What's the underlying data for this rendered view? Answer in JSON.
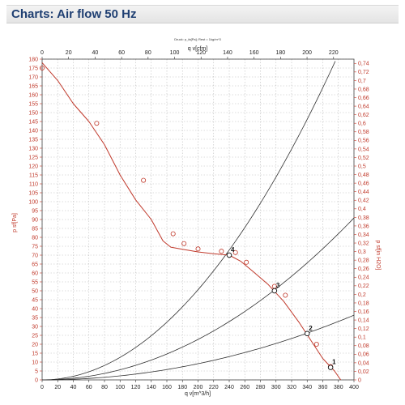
{
  "header": {
    "title": "Charts: Air flow 50 Hz"
  },
  "chart_data": {
    "type": "line",
    "subtitle": "Druck: p_fa[Pa]; Rest = 1kg/m^3",
    "colors": {
      "curve": "#c0392b",
      "right_axis": "#c0392b",
      "left_axis": "#c0392b",
      "top_axis": "#000000",
      "system": "#303030",
      "grid": "#bdbdbd"
    },
    "x_bottom": {
      "label": "q v[m^3/h]",
      "range": [
        0,
        400
      ],
      "ticks": [
        0,
        20,
        40,
        60,
        80,
        100,
        120,
        140,
        160,
        180,
        200,
        220,
        240,
        260,
        280,
        300,
        320,
        340,
        360,
        380,
        400
      ]
    },
    "x_top": {
      "label": "q v[cfm]",
      "range": [
        0,
        235.43
      ],
      "ticks": [
        0,
        20,
        40,
        60,
        80,
        100,
        120,
        140,
        160,
        180,
        200,
        220
      ]
    },
    "y_left": {
      "label": "p sf[Pa]",
      "range": [
        0,
        180
      ],
      "ticks": [
        0,
        5,
        10,
        15,
        20,
        25,
        30,
        35,
        40,
        45,
        50,
        55,
        60,
        65,
        70,
        75,
        80,
        85,
        90,
        95,
        100,
        105,
        110,
        115,
        120,
        125,
        130,
        135,
        140,
        145,
        150,
        155,
        160,
        165,
        170,
        175,
        180
      ]
    },
    "y_right": {
      "label": "p sf[in H2O]",
      "range": [
        0,
        0.75
      ],
      "ticks": [
        "0",
        "0,02",
        "0,04",
        "0,06",
        "0,08",
        "0,1",
        "0,12",
        "0,14",
        "0,16",
        "0,18",
        "0,2",
        "0,22",
        "0,24",
        "0,26",
        "0,28",
        "0,3",
        "0,32",
        "0,34",
        "0,36",
        "0,38",
        "0,4",
        "0,42",
        "0,44",
        "0,46",
        "0,48",
        "0,5",
        "0,52",
        "0,54",
        "0,56",
        "0,58",
        "0,6",
        "0,62",
        "0,64",
        "0,66",
        "0,68",
        "0,7",
        "0,72",
        "0,74"
      ]
    },
    "grid": true,
    "series": [
      {
        "kind": "fan_curve",
        "x": [
          0,
          20,
          40,
          60,
          80,
          100,
          120,
          140,
          155,
          165,
          180,
          200,
          220,
          240,
          255,
          270,
          290,
          310,
          330,
          345,
          360,
          375,
          383
        ],
        "y": [
          178,
          168,
          155,
          145,
          132,
          115,
          101,
          90,
          78,
          74.5,
          73.3,
          71.8,
          70.8,
          70,
          66.5,
          61,
          53.5,
          44,
          32,
          22,
          12,
          5,
          0
        ],
        "markers_x": [
          0,
          70,
          130,
          168,
          182,
          200,
          230,
          248,
          262,
          298,
          312,
          352,
          370
        ],
        "markers_y": [
          175,
          144,
          112,
          82,
          76.5,
          73.5,
          72.2,
          71.5,
          66,
          52.5,
          47.5,
          20,
          7.5
        ]
      },
      {
        "kind": "system_curve",
        "k": 0.001265
      },
      {
        "kind": "system_curve",
        "k": 0.000568
      },
      {
        "kind": "system_curve",
        "k": 0.000227
      }
    ],
    "operating_points": [
      {
        "label": "4",
        "x": 240,
        "y": 70
      },
      {
        "label": "3",
        "x": 298,
        "y": 50
      },
      {
        "label": "2",
        "x": 340,
        "y": 26
      },
      {
        "label": "1",
        "x": 370,
        "y": 7
      }
    ]
  }
}
